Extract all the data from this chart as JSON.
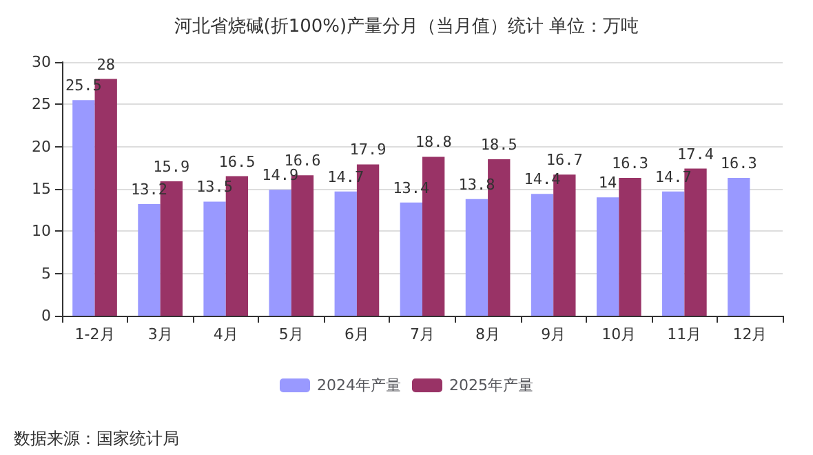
{
  "chart_data": {
    "type": "bar",
    "title": "河北省烧碱(折100%)产量分月（当月值）统计 单位：万吨",
    "categories": [
      "1-2月",
      "3月",
      "4月",
      "5月",
      "6月",
      "7月",
      "8月",
      "9月",
      "10月",
      "11月",
      "12月"
    ],
    "series": [
      {
        "name": "2024年产量",
        "color": "#9999ff",
        "values": [
          25.5,
          13.2,
          13.5,
          14.9,
          14.7,
          13.4,
          13.8,
          14.4,
          14,
          14.7,
          16.3
        ]
      },
      {
        "name": "2025年产量",
        "color": "#993366",
        "values": [
          28,
          15.9,
          16.5,
          16.6,
          17.9,
          18.8,
          18.5,
          16.7,
          16.3,
          17.4,
          null
        ]
      }
    ],
    "ylim": [
      0,
      30
    ],
    "yticks": [
      0,
      5,
      10,
      15,
      20,
      25,
      30
    ],
    "grid": "y",
    "legend": "bottom",
    "data_labels": true,
    "annotations": [
      "数据来源：国家统计局"
    ]
  }
}
